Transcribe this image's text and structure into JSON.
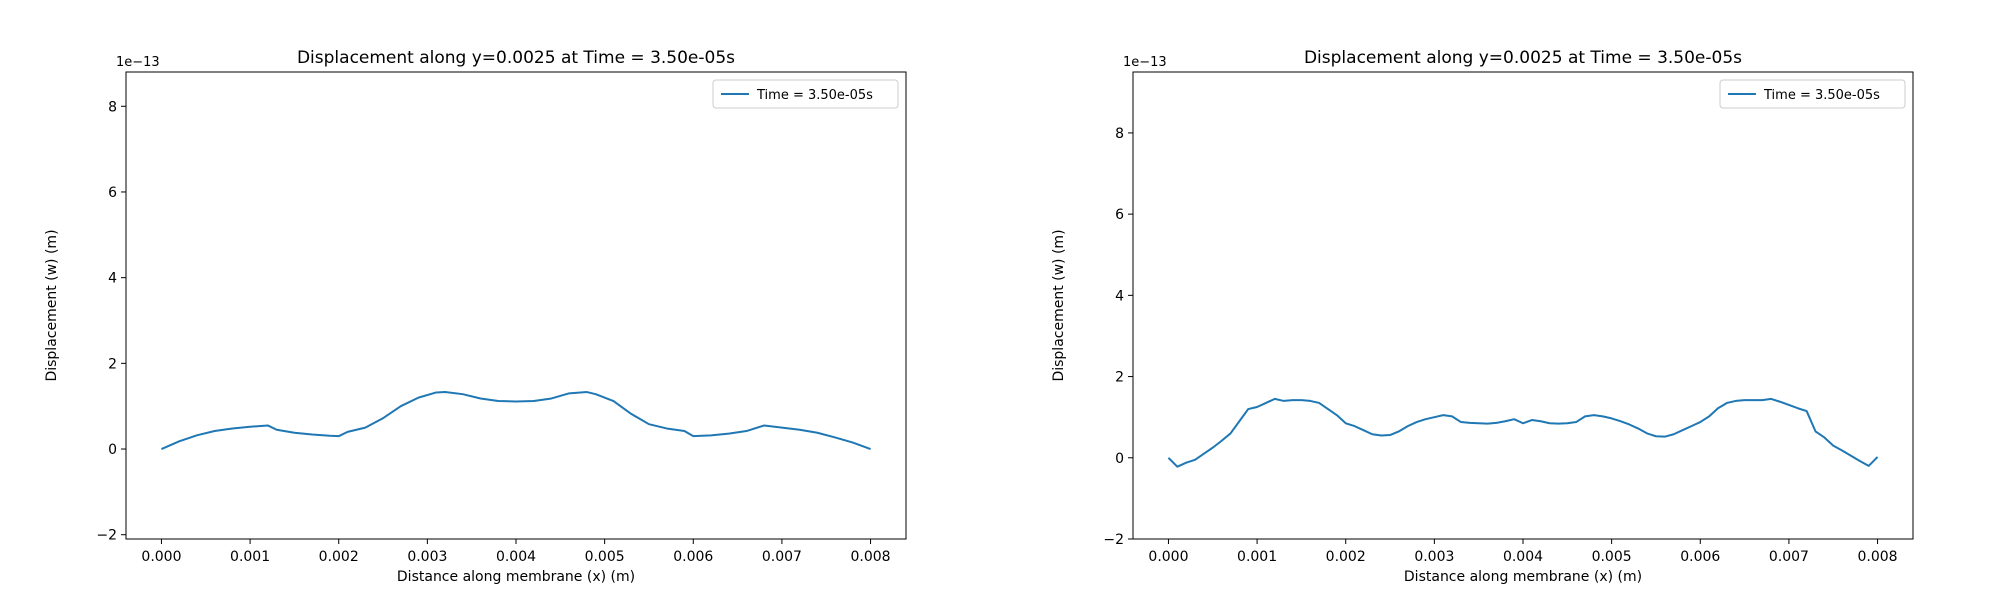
{
  "figure": {
    "background": "#ffffff"
  },
  "chart_data": [
    {
      "type": "line",
      "title": "Displacement along y=0.0025 at Time = 3.50e-05s",
      "xlabel": "Distance along membrane (x) (m)",
      "ylabel": "Displacement (w) (m)",
      "y_offset_label": "1e−13",
      "y_scale": 1e-13,
      "xlim": [
        -0.0004,
        0.0084
      ],
      "ylim": [
        -2.1,
        8.8
      ],
      "xticks": [
        0.0,
        0.001,
        0.002,
        0.003,
        0.004,
        0.005,
        0.006,
        0.007,
        0.008
      ],
      "xtick_labels": [
        "0.000",
        "0.001",
        "0.002",
        "0.003",
        "0.004",
        "0.005",
        "0.006",
        "0.007",
        "0.008"
      ],
      "yticks": [
        -2,
        0,
        2,
        4,
        6,
        8
      ],
      "ytick_labels": [
        "−2",
        "0",
        "2",
        "4",
        "6",
        "8"
      ],
      "grid": false,
      "legend": "top-right",
      "series": [
        {
          "name": "Time = 3.50e-05s",
          "color": "#1f77b4",
          "x": [
            0.0,
            0.0002,
            0.0004,
            0.0006,
            0.0008,
            0.001,
            0.0012,
            0.0013,
            0.0015,
            0.0017,
            0.0019,
            0.002,
            0.0021,
            0.0023,
            0.0025,
            0.0027,
            0.0029,
            0.0031,
            0.0032,
            0.0034,
            0.0036,
            0.0038,
            0.004,
            0.0042,
            0.0044,
            0.0046,
            0.0048,
            0.0049,
            0.0051,
            0.0053,
            0.0055,
            0.0057,
            0.0059,
            0.006,
            0.0062,
            0.0064,
            0.0066,
            0.0068,
            0.007,
            0.0072,
            0.0074,
            0.0076,
            0.0078,
            0.008
          ],
          "y": [
            0.0,
            0.18,
            0.32,
            0.42,
            0.48,
            0.52,
            0.55,
            0.45,
            0.38,
            0.34,
            0.31,
            0.3,
            0.4,
            0.5,
            0.72,
            1.0,
            1.2,
            1.32,
            1.33,
            1.28,
            1.18,
            1.12,
            1.11,
            1.12,
            1.18,
            1.3,
            1.33,
            1.28,
            1.12,
            0.82,
            0.58,
            0.48,
            0.42,
            0.3,
            0.32,
            0.36,
            0.42,
            0.55,
            0.5,
            0.45,
            0.38,
            0.27,
            0.15,
            0.0
          ]
        }
      ]
    },
    {
      "type": "line",
      "title": "Displacement along y=0.0025 at Time = 3.50e-05s",
      "xlabel": "Distance along membrane (x) (m)",
      "ylabel": "Displacement (w) (m)",
      "y_offset_label": "1e−13",
      "y_scale": 1e-13,
      "xlim": [
        -0.0004,
        0.0084
      ],
      "ylim": [
        -2.0,
        9.5
      ],
      "xticks": [
        0.0,
        0.001,
        0.002,
        0.003,
        0.004,
        0.005,
        0.006,
        0.007,
        0.008
      ],
      "xtick_labels": [
        "0.000",
        "0.001",
        "0.002",
        "0.003",
        "0.004",
        "0.005",
        "0.006",
        "0.007",
        "0.008"
      ],
      "yticks": [
        -2,
        0,
        2,
        4,
        6,
        8
      ],
      "ytick_labels": [
        "−2",
        "0",
        "2",
        "4",
        "6",
        "8"
      ],
      "grid": false,
      "legend": "top-right",
      "series": [
        {
          "name": "Time = 3.50e-05s",
          "color": "#1f77b4",
          "x": [
            0.0,
            0.0001,
            0.0002,
            0.0003,
            0.0004,
            0.0005,
            0.0006,
            0.0007,
            0.0008,
            0.0009,
            0.001,
            0.0011,
            0.0012,
            0.0013,
            0.0014,
            0.0015,
            0.0016,
            0.0017,
            0.0018,
            0.0019,
            0.002,
            0.0021,
            0.0022,
            0.0023,
            0.0024,
            0.0025,
            0.0026,
            0.0027,
            0.0028,
            0.0029,
            0.003,
            0.0031,
            0.0032,
            0.0033,
            0.0034,
            0.0035,
            0.0036,
            0.0037,
            0.0038,
            0.0039,
            0.004,
            0.0041,
            0.0042,
            0.0043,
            0.0044,
            0.0045,
            0.0046,
            0.0047,
            0.0048,
            0.0049,
            0.005,
            0.0051,
            0.0052,
            0.0053,
            0.0054,
            0.0055,
            0.0056,
            0.0057,
            0.0058,
            0.0059,
            0.006,
            0.0061,
            0.0062,
            0.0063,
            0.0064,
            0.0065,
            0.0066,
            0.0067,
            0.0068,
            0.0069,
            0.007,
            0.0071,
            0.0072,
            0.0073,
            0.0074,
            0.0075,
            0.0076,
            0.0077,
            0.0078,
            0.0079,
            0.008
          ],
          "y": [
            0.0,
            -0.22,
            -0.12,
            -0.05,
            0.1,
            0.25,
            0.42,
            0.6,
            0.9,
            1.2,
            1.25,
            1.35,
            1.45,
            1.4,
            1.42,
            1.42,
            1.4,
            1.35,
            1.2,
            1.05,
            0.85,
            0.78,
            0.68,
            0.58,
            0.55,
            0.56,
            0.65,
            0.78,
            0.88,
            0.95,
            1.0,
            1.05,
            1.02,
            0.88,
            0.86,
            0.85,
            0.84,
            0.86,
            0.9,
            0.95,
            0.85,
            0.93,
            0.9,
            0.85,
            0.84,
            0.85,
            0.88,
            1.02,
            1.05,
            1.02,
            0.97,
            0.9,
            0.82,
            0.72,
            0.6,
            0.53,
            0.52,
            0.58,
            0.68,
            0.78,
            0.88,
            1.02,
            1.22,
            1.35,
            1.4,
            1.42,
            1.42,
            1.42,
            1.45,
            1.38,
            1.3,
            1.22,
            1.15,
            0.65,
            0.5,
            0.3,
            0.18,
            0.05,
            -0.08,
            -0.2,
            0.02
          ]
        }
      ]
    }
  ]
}
